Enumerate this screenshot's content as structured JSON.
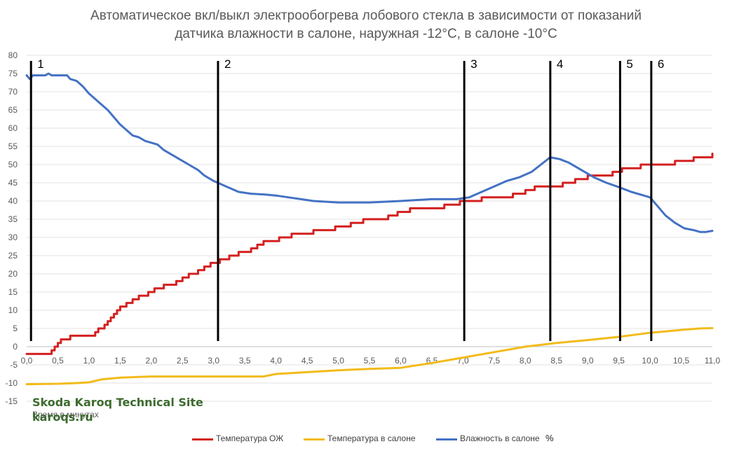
{
  "chart_data": {
    "type": "line",
    "title_line1": "Автоматическое вкл/выкл электрообогрева лобового стекла в зависимости от показаний",
    "title_line2": "датчика влажности в салоне, наружная -12°C, в салоне -10°C",
    "xlabel": "Время в минутах",
    "ylabel": "",
    "xlim": [
      0,
      11
    ],
    "ylim": [
      -15,
      80
    ],
    "x_ticks": [
      0.0,
      0.5,
      1.0,
      1.5,
      2.0,
      2.5,
      3.0,
      3.5,
      4.0,
      4.5,
      5.0,
      5.5,
      6.0,
      6.5,
      7.0,
      7.5,
      8.0,
      8.5,
      9.0,
      9.5,
      10.0,
      10.5,
      11.0
    ],
    "x_tick_labels": [
      "0,0",
      "0,5",
      "1,0",
      "1,5",
      "2,0",
      "2,5",
      "3,0",
      "3,5",
      "4,0",
      "4,5",
      "5,0",
      "5,5",
      "6,0",
      "6,5",
      "7,0",
      "7,5",
      "8,0",
      "8,5",
      "9,0",
      "9,5",
      "10,0",
      "10,5",
      "11,0"
    ],
    "y_ticks": [
      -15,
      -10,
      -5,
      0,
      5,
      10,
      15,
      20,
      25,
      30,
      35,
      40,
      45,
      50,
      55,
      60,
      65,
      70,
      75,
      80
    ],
    "grid": "horizontal",
    "legend_position": "bottom",
    "series": [
      {
        "name": "Температура ОЖ",
        "color": "#d42020",
        "points": [
          [
            0.0,
            -2
          ],
          [
            0.35,
            -2
          ],
          [
            0.4,
            -1
          ],
          [
            0.45,
            0
          ],
          [
            0.5,
            1
          ],
          [
            0.55,
            2
          ],
          [
            0.65,
            2
          ],
          [
            0.7,
            3
          ],
          [
            1.05,
            3
          ],
          [
            1.1,
            4
          ],
          [
            1.15,
            5
          ],
          [
            1.25,
            6
          ],
          [
            1.3,
            7
          ],
          [
            1.35,
            8
          ],
          [
            1.4,
            9
          ],
          [
            1.45,
            10
          ],
          [
            1.5,
            11
          ],
          [
            1.6,
            12
          ],
          [
            1.7,
            13
          ],
          [
            1.8,
            14
          ],
          [
            1.95,
            15
          ],
          [
            2.05,
            16
          ],
          [
            2.2,
            17
          ],
          [
            2.4,
            18
          ],
          [
            2.5,
            19
          ],
          [
            2.6,
            20
          ],
          [
            2.75,
            21
          ],
          [
            2.85,
            22
          ],
          [
            2.95,
            23
          ],
          [
            3.1,
            24
          ],
          [
            3.25,
            25
          ],
          [
            3.4,
            26
          ],
          [
            3.6,
            27
          ],
          [
            3.7,
            28
          ],
          [
            3.8,
            29
          ],
          [
            4.05,
            30
          ],
          [
            4.25,
            31
          ],
          [
            4.6,
            32
          ],
          [
            4.95,
            33
          ],
          [
            5.2,
            34
          ],
          [
            5.4,
            35
          ],
          [
            5.8,
            36
          ],
          [
            5.95,
            37
          ],
          [
            6.15,
            38
          ],
          [
            6.7,
            39
          ],
          [
            6.95,
            40
          ],
          [
            7.3,
            41
          ],
          [
            7.8,
            42
          ],
          [
            8.0,
            43
          ],
          [
            8.15,
            44
          ],
          [
            8.6,
            45
          ],
          [
            8.8,
            46
          ],
          [
            9.0,
            47
          ],
          [
            9.4,
            48
          ],
          [
            9.55,
            49
          ],
          [
            9.85,
            50
          ],
          [
            10.4,
            51
          ],
          [
            10.7,
            52
          ],
          [
            11.0,
            53
          ]
        ]
      },
      {
        "name": "Температура в салоне",
        "color": "#f2bb1a",
        "points": [
          [
            0.0,
            -10.3
          ],
          [
            0.5,
            -10.2
          ],
          [
            0.8,
            -10.0
          ],
          [
            1.0,
            -9.8
          ],
          [
            1.2,
            -9.0
          ],
          [
            1.5,
            -8.5
          ],
          [
            1.8,
            -8.3
          ],
          [
            2.0,
            -8.2
          ],
          [
            3.0,
            -8.2
          ],
          [
            3.8,
            -8.2
          ],
          [
            4.0,
            -7.5
          ],
          [
            4.5,
            -7.0
          ],
          [
            5.0,
            -6.5
          ],
          [
            5.5,
            -6.1
          ],
          [
            6.0,
            -5.8
          ],
          [
            6.5,
            -4.5
          ],
          [
            7.0,
            -3.0
          ],
          [
            7.5,
            -1.5
          ],
          [
            8.0,
            0.0
          ],
          [
            8.5,
            1.0
          ],
          [
            9.0,
            1.8
          ],
          [
            9.5,
            2.7
          ],
          [
            10.0,
            3.8
          ],
          [
            10.5,
            4.6
          ],
          [
            10.8,
            5.0
          ],
          [
            11.0,
            5.1
          ]
        ]
      },
      {
        "name": "Влажность в салоне",
        "unit": "%",
        "color": "#4472c4",
        "points": [
          [
            0.0,
            74.5
          ],
          [
            0.05,
            73.5
          ],
          [
            0.1,
            74.5
          ],
          [
            0.3,
            74.5
          ],
          [
            0.35,
            75
          ],
          [
            0.4,
            74.5
          ],
          [
            0.65,
            74.5
          ],
          [
            0.7,
            73.5
          ],
          [
            0.8,
            73.0
          ],
          [
            0.9,
            71.5
          ],
          [
            1.0,
            69.5
          ],
          [
            1.1,
            68.0
          ],
          [
            1.2,
            66.5
          ],
          [
            1.3,
            65.0
          ],
          [
            1.4,
            63.0
          ],
          [
            1.5,
            61.0
          ],
          [
            1.6,
            59.5
          ],
          [
            1.7,
            58.0
          ],
          [
            1.8,
            57.5
          ],
          [
            1.9,
            56.5
          ],
          [
            2.0,
            56.0
          ],
          [
            2.1,
            55.5
          ],
          [
            2.2,
            54.0
          ],
          [
            2.3,
            53.0
          ],
          [
            2.4,
            52.0
          ],
          [
            2.5,
            51.0
          ],
          [
            2.6,
            50.0
          ],
          [
            2.75,
            48.5
          ],
          [
            2.85,
            47.0
          ],
          [
            3.0,
            45.5
          ],
          [
            3.2,
            44.0
          ],
          [
            3.4,
            42.5
          ],
          [
            3.6,
            42.0
          ],
          [
            3.8,
            41.8
          ],
          [
            4.0,
            41.5
          ],
          [
            4.2,
            41.0
          ],
          [
            4.4,
            40.5
          ],
          [
            4.6,
            40.0
          ],
          [
            5.0,
            39.6
          ],
          [
            5.5,
            39.6
          ],
          [
            6.0,
            40.0
          ],
          [
            6.5,
            40.5
          ],
          [
            6.9,
            40.5
          ],
          [
            7.1,
            41.0
          ],
          [
            7.3,
            42.5
          ],
          [
            7.5,
            44.0
          ],
          [
            7.7,
            45.5
          ],
          [
            7.9,
            46.5
          ],
          [
            8.1,
            48.0
          ],
          [
            8.25,
            50.0
          ],
          [
            8.4,
            52.0
          ],
          [
            8.55,
            51.5
          ],
          [
            8.7,
            50.5
          ],
          [
            8.9,
            48.5
          ],
          [
            9.1,
            46.5
          ],
          [
            9.3,
            45.0
          ],
          [
            9.5,
            43.8
          ],
          [
            9.7,
            42.5
          ],
          [
            9.9,
            41.5
          ],
          [
            10.0,
            41.0
          ],
          [
            10.1,
            39.0
          ],
          [
            10.25,
            36.0
          ],
          [
            10.4,
            34.0
          ],
          [
            10.55,
            32.5
          ],
          [
            10.7,
            32.0
          ],
          [
            10.8,
            31.5
          ],
          [
            10.9,
            31.5
          ],
          [
            11.0,
            31.8
          ]
        ]
      }
    ],
    "markers": [
      {
        "label": "1",
        "x": 0.07
      },
      {
        "label": "2",
        "x": 3.07
      },
      {
        "label": "3",
        "x": 7.02
      },
      {
        "label": "4",
        "x": 8.4
      },
      {
        "label": "5",
        "x": 9.52
      },
      {
        "label": "6",
        "x": 10.02
      }
    ],
    "marker_range": [
      0,
      80
    ]
  },
  "watermark": {
    "line1": "Skoda Karoq Technical Site",
    "line2": "karoqs.ru"
  },
  "legend_unit": "%"
}
